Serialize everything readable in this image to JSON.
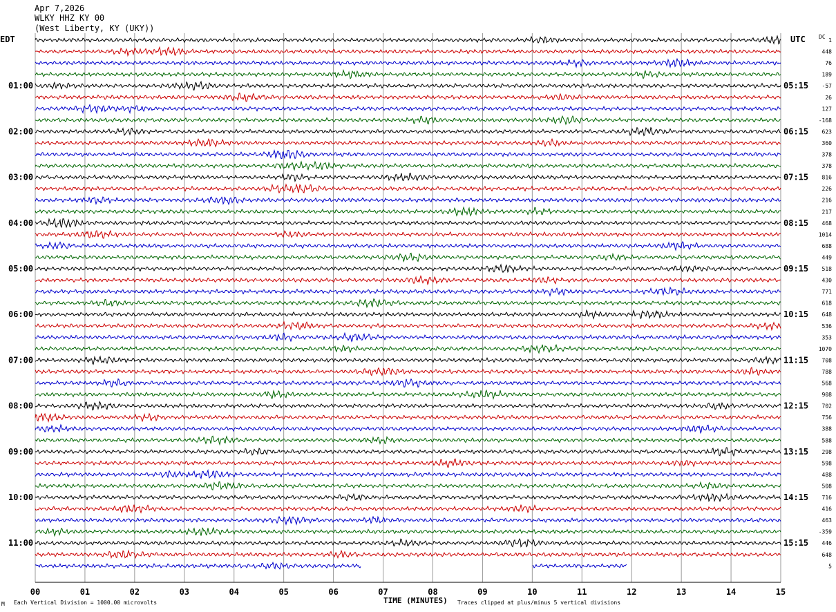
{
  "header": {
    "date": "Apr 7,2026",
    "station": "WLKY HHZ KY 00",
    "location": "(West Liberty, KY (UKY))"
  },
  "left_tz": "EDT",
  "right_tz": "UTC",
  "dc_label": "DC",
  "footer": {
    "scale": "Each Vertical Division = 1000.00 microvolts",
    "xlabel": "TIME (MINUTES)",
    "clip_note": "Traces clipped at plus/minus 5 vertical divisions",
    "corner_mark": "M"
  },
  "colors": {
    "cycle": [
      "#000000",
      "#cc0000",
      "#0000cc",
      "#006600"
    ],
    "grid": "#999999"
  },
  "chart_data": {
    "type": "line",
    "title": "",
    "xlabel": "TIME (MINUTES)",
    "ylabel": "",
    "xlim": [
      0,
      15
    ],
    "x_ticks": [
      "00",
      "01",
      "02",
      "03",
      "04",
      "05",
      "06",
      "07",
      "08",
      "09",
      "10",
      "11",
      "12",
      "13",
      "14",
      "15"
    ],
    "grid": true,
    "rows_per_hour": 4,
    "left_hour_labels": [
      "01:00",
      "02:00",
      "03:00",
      "04:00",
      "05:00",
      "06:00",
      "07:00",
      "08:00",
      "09:00",
      "10:00",
      "11:00"
    ],
    "right_hour_labels": [
      "05:15",
      "06:15",
      "07:15",
      "08:15",
      "09:15",
      "10:15",
      "11:15",
      "12:15",
      "13:15",
      "14:15",
      "15:15"
    ],
    "dc_offsets": [
      "1",
      "448",
      "76",
      "189",
      "-57",
      "26",
      "127",
      "-168",
      "623",
      "360",
      "378",
      "378",
      "816",
      "226",
      "216",
      "217",
      "468",
      "1014",
      "688",
      "449",
      "518",
      "430",
      "771",
      "618",
      "648",
      "536",
      "353",
      "1070",
      "708",
      "788",
      "568",
      "908",
      "702",
      "756",
      "388",
      "588",
      "298",
      "598",
      "488",
      "508",
      "716",
      "416",
      "463",
      "-359",
      "446",
      "648",
      "5"
    ],
    "gaps": [
      {
        "row": 46,
        "start": 6.55,
        "end": 10.0
      },
      {
        "row": 46,
        "start": 11.9,
        "end": 15.0
      }
    ]
  }
}
